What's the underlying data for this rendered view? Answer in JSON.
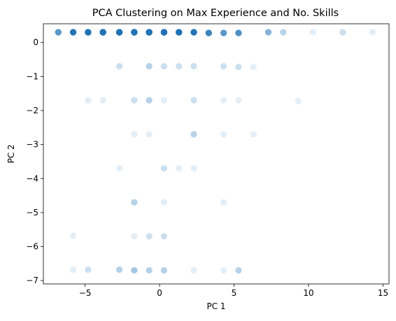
{
  "chart_data": {
    "type": "scatter",
    "title": "PCA Clustering on Max Experience and No. Skills",
    "xlabel": "PC 1",
    "ylabel": "PC 2",
    "xlim": [
      -7.8,
      15.4
    ],
    "ylim": [
      -7.1,
      0.55
    ],
    "xticks": [
      -5,
      0,
      5,
      10,
      15
    ],
    "yticks": [
      0,
      -1,
      -2,
      -3,
      -4,
      -5,
      -6,
      -7
    ],
    "grid": false,
    "legend": "none",
    "marker_color": "#1f77b4",
    "marker_alpha": 0.12,
    "points": [
      {
        "x": -6.8,
        "y": 0.3,
        "n": 10
      },
      {
        "x": -5.8,
        "y": 0.3,
        "n": 25
      },
      {
        "x": -4.8,
        "y": 0.3,
        "n": 30
      },
      {
        "x": -3.8,
        "y": 0.3,
        "n": 40
      },
      {
        "x": -2.7,
        "y": 0.3,
        "n": 60
      },
      {
        "x": -1.7,
        "y": 0.3,
        "n": 50
      },
      {
        "x": -0.7,
        "y": 0.3,
        "n": 55
      },
      {
        "x": 0.3,
        "y": 0.3,
        "n": 45
      },
      {
        "x": 1.3,
        "y": 0.3,
        "n": 30
      },
      {
        "x": 2.3,
        "y": 0.3,
        "n": 25
      },
      {
        "x": 3.3,
        "y": 0.28,
        "n": 15
      },
      {
        "x": 4.3,
        "y": 0.28,
        "n": 10
      },
      {
        "x": 5.3,
        "y": 0.28,
        "n": 12
      },
      {
        "x": 7.3,
        "y": 0.3,
        "n": 6
      },
      {
        "x": 8.3,
        "y": 0.3,
        "n": 3
      },
      {
        "x": 10.3,
        "y": 0.3,
        "n": 1
      },
      {
        "x": 12.3,
        "y": 0.3,
        "n": 2
      },
      {
        "x": 14.3,
        "y": 0.3,
        "n": 1
      },
      {
        "x": -2.7,
        "y": -0.7,
        "n": 2
      },
      {
        "x": -0.7,
        "y": -0.7,
        "n": 3
      },
      {
        "x": 0.3,
        "y": -0.7,
        "n": 2
      },
      {
        "x": 1.3,
        "y": -0.7,
        "n": 2
      },
      {
        "x": 2.3,
        "y": -0.7,
        "n": 2
      },
      {
        "x": 4.3,
        "y": -0.7,
        "n": 2
      },
      {
        "x": 5.3,
        "y": -0.72,
        "n": 2
      },
      {
        "x": 6.3,
        "y": -0.72,
        "n": 1
      },
      {
        "x": -4.8,
        "y": -1.7,
        "n": 1
      },
      {
        "x": -3.8,
        "y": -1.7,
        "n": 1
      },
      {
        "x": -1.7,
        "y": -1.7,
        "n": 2
      },
      {
        "x": -0.7,
        "y": -1.7,
        "n": 3
      },
      {
        "x": 0.3,
        "y": -1.7,
        "n": 1
      },
      {
        "x": 2.3,
        "y": -1.7,
        "n": 2
      },
      {
        "x": 4.3,
        "y": -1.7,
        "n": 1
      },
      {
        "x": 5.3,
        "y": -1.7,
        "n": 1
      },
      {
        "x": 9.3,
        "y": -1.72,
        "n": 1
      },
      {
        "x": -1.7,
        "y": -2.7,
        "n": 1
      },
      {
        "x": -0.7,
        "y": -2.7,
        "n": 1
      },
      {
        "x": 2.3,
        "y": -2.7,
        "n": 3
      },
      {
        "x": 4.3,
        "y": -2.7,
        "n": 1
      },
      {
        "x": 6.3,
        "y": -2.7,
        "n": 1
      },
      {
        "x": -2.7,
        "y": -3.7,
        "n": 1
      },
      {
        "x": 0.3,
        "y": -3.7,
        "n": 2
      },
      {
        "x": 1.3,
        "y": -3.7,
        "n": 1
      },
      {
        "x": 2.3,
        "y": -3.7,
        "n": 1
      },
      {
        "x": -1.7,
        "y": -4.7,
        "n": 3
      },
      {
        "x": 0.3,
        "y": -4.7,
        "n": 1
      },
      {
        "x": 4.3,
        "y": -4.7,
        "n": 1
      },
      {
        "x": -5.8,
        "y": -5.68,
        "n": 1
      },
      {
        "x": -1.7,
        "y": -5.7,
        "n": 1
      },
      {
        "x": -0.7,
        "y": -5.7,
        "n": 2
      },
      {
        "x": 0.3,
        "y": -5.7,
        "n": 2
      },
      {
        "x": -5.8,
        "y": -6.68,
        "n": 1
      },
      {
        "x": -4.8,
        "y": -6.68,
        "n": 2
      },
      {
        "x": -2.7,
        "y": -6.68,
        "n": 3
      },
      {
        "x": -1.7,
        "y": -6.7,
        "n": 4
      },
      {
        "x": -0.7,
        "y": -6.7,
        "n": 3
      },
      {
        "x": 0.3,
        "y": -6.7,
        "n": 3
      },
      {
        "x": 2.3,
        "y": -6.7,
        "n": 1
      },
      {
        "x": 4.3,
        "y": -6.7,
        "n": 1
      },
      {
        "x": 5.3,
        "y": -6.7,
        "n": 3
      }
    ]
  }
}
